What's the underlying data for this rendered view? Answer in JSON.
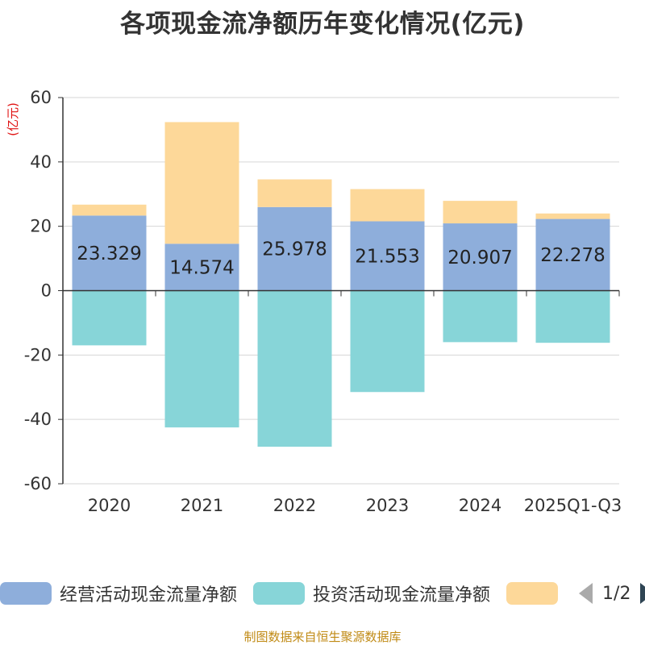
{
  "chart_data": {
    "type": "bar",
    "title": "各项现金流净额历年变化情况(亿元)",
    "ylabel": "(亿元)",
    "categories": [
      "2020",
      "2021",
      "2022",
      "2023",
      "2024",
      "2025Q1-Q3"
    ],
    "ylim": [
      -60,
      60
    ],
    "yticks": [
      60,
      40,
      20,
      0,
      -20,
      -40,
      -60
    ],
    "stacked": true,
    "series": [
      {
        "name": "经营活动现金流量净额",
        "color": "#8eaedb",
        "values": [
          23.329,
          14.574,
          25.978,
          21.553,
          20.907,
          22.278
        ],
        "labels": [
          "23.329",
          "14.574",
          "25.978",
          "21.553",
          "20.907",
          "22.278"
        ]
      },
      {
        "name": "投资活动现金流量净额",
        "color": "#87d5d8",
        "values": [
          -17,
          -42.5,
          -48.5,
          -31.5,
          -16,
          -16.2
        ]
      },
      {
        "name": "",
        "color": "#fdd899",
        "values": [
          3.4,
          37.8,
          8.6,
          10,
          7,
          1.7
        ]
      }
    ],
    "legend_position": "bottom"
  },
  "legend": {
    "items": [
      {
        "label": "经营活动现金流量净额",
        "color": "#8eaedb"
      },
      {
        "label": "投资活动现金流量净额",
        "color": "#87d5d8"
      },
      {
        "label": "",
        "color": "#fdd899"
      }
    ],
    "page": "1/2"
  },
  "footer": "制图数据来自恒生聚源数据库"
}
